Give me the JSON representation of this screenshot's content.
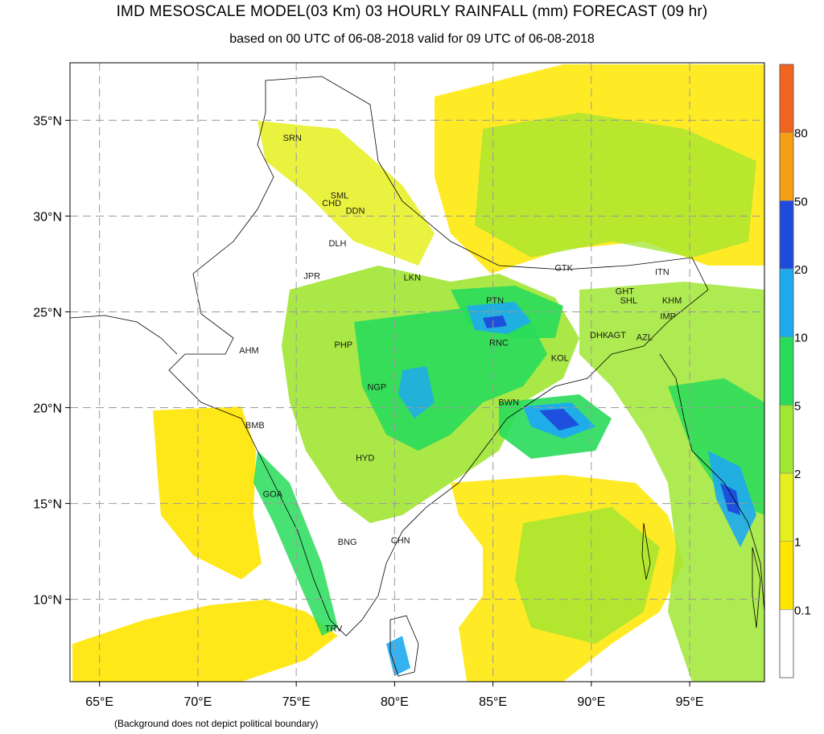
{
  "title": "IMD MESOSCALE MODEL(03 Km) 03 HOURLY RAINFALL (mm) FORECAST  (09 hr)",
  "subtitle": "based on 00 UTC of 06-08-2018 valid for 09 UTC of 06-08-2018",
  "footnote": "(Background does not depict political boundary)",
  "map": {
    "lon_range": [
      63.5,
      98.8
    ],
    "lat_range": [
      5.7,
      38.0
    ],
    "lon_ticks": [
      {
        "value": 65,
        "label": "65°E"
      },
      {
        "value": 70,
        "label": "70°E"
      },
      {
        "value": 75,
        "label": "75°E"
      },
      {
        "value": 80,
        "label": "80°E"
      },
      {
        "value": 85,
        "label": "85°E"
      },
      {
        "value": 90,
        "label": "90°E"
      },
      {
        "value": 95,
        "label": "95°E"
      }
    ],
    "lat_ticks": [
      {
        "value": 10,
        "label": "10°N"
      },
      {
        "value": 15,
        "label": "15°N"
      },
      {
        "value": 20,
        "label": "20°N"
      },
      {
        "value": 25,
        "label": "25°N"
      },
      {
        "value": 30,
        "label": "30°N"
      },
      {
        "value": 35,
        "label": "35°N"
      }
    ],
    "stations": [
      {
        "code": "SRN",
        "lon": 74.8,
        "lat": 34.1
      },
      {
        "code": "SML",
        "lon": 77.2,
        "lat": 31.1
      },
      {
        "code": "CHD",
        "lon": 76.8,
        "lat": 30.7
      },
      {
        "code": "DDN",
        "lon": 78.0,
        "lat": 30.3
      },
      {
        "code": "DLH",
        "lon": 77.1,
        "lat": 28.6
      },
      {
        "code": "JPR",
        "lon": 75.8,
        "lat": 26.9
      },
      {
        "code": "LKN",
        "lon": 80.9,
        "lat": 26.8
      },
      {
        "code": "GTK",
        "lon": 88.6,
        "lat": 27.3
      },
      {
        "code": "ITN",
        "lon": 93.6,
        "lat": 27.1
      },
      {
        "code": "GHT",
        "lon": 91.7,
        "lat": 26.1
      },
      {
        "code": "SHL",
        "lon": 91.9,
        "lat": 25.6
      },
      {
        "code": "KHM",
        "lon": 94.1,
        "lat": 25.6
      },
      {
        "code": "IMP",
        "lon": 93.9,
        "lat": 24.8
      },
      {
        "code": "PTN",
        "lon": 85.1,
        "lat": 25.6
      },
      {
        "code": "AHM",
        "lon": 72.6,
        "lat": 23.0
      },
      {
        "code": "PHP",
        "lon": 77.4,
        "lat": 23.3
      },
      {
        "code": "RNC",
        "lon": 85.3,
        "lat": 23.4
      },
      {
        "code": "DHK",
        "lon": 90.4,
        "lat": 23.8
      },
      {
        "code": "AGT",
        "lon": 91.3,
        "lat": 23.8
      },
      {
        "code": "AZL",
        "lon": 92.7,
        "lat": 23.7
      },
      {
        "code": "KOL",
        "lon": 88.4,
        "lat": 22.6
      },
      {
        "code": "NGP",
        "lon": 79.1,
        "lat": 21.1
      },
      {
        "code": "BWN",
        "lon": 85.8,
        "lat": 20.3
      },
      {
        "code": "BMB",
        "lon": 72.9,
        "lat": 19.1
      },
      {
        "code": "HYD",
        "lon": 78.5,
        "lat": 17.4
      },
      {
        "code": "GOA",
        "lon": 73.8,
        "lat": 15.5
      },
      {
        "code": "BNG",
        "lon": 77.6,
        "lat": 13.0
      },
      {
        "code": "CHN",
        "lon": 80.3,
        "lat": 13.1
      },
      {
        "code": "TRV",
        "lon": 76.9,
        "lat": 8.5
      }
    ]
  },
  "legend": {
    "levels": [
      {
        "label": "",
        "color": "#ffffff"
      },
      {
        "label": "0.1",
        "color": "#ffe600"
      },
      {
        "label": "1",
        "color": "#e6f01e"
      },
      {
        "label": "2",
        "color": "#a0e632"
      },
      {
        "label": "5",
        "color": "#28dc5a"
      },
      {
        "label": "10",
        "color": "#1eaaf0"
      },
      {
        "label": "20",
        "color": "#1e4bdc"
      },
      {
        "label": "50",
        "color": "#f5a014"
      },
      {
        "label": "80",
        "color": "#f0641e"
      }
    ]
  },
  "colors": {
    "rain_light": "#ffe600",
    "rain_1": "#e6f01e",
    "rain_2": "#a0e632",
    "rain_5": "#28dc5a",
    "rain_10": "#1eaaf0",
    "rain_20": "#1e4bdc",
    "grid": "#9a9a9a",
    "border": "#000000"
  }
}
